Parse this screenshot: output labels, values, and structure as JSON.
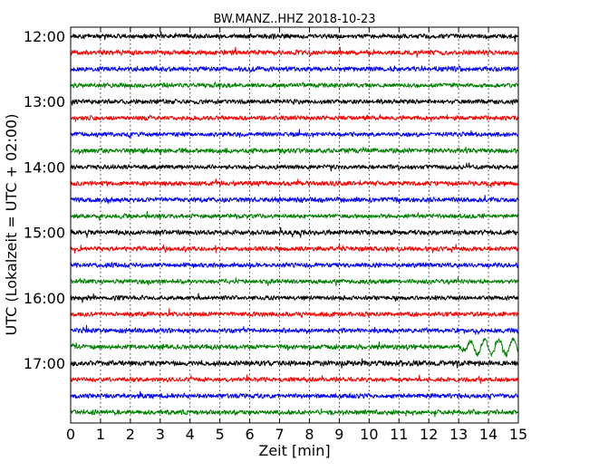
{
  "chart_data": {
    "type": "line",
    "title": "BW.MANZ..HHZ 2018-10-23",
    "xlabel": "Zeit  [min]",
    "ylabel": "UTC (Lokalzeit = UTC + 02:00)",
    "xlim": [
      0,
      15
    ],
    "x_ticks": [
      "0",
      "1",
      "2",
      "3",
      "4",
      "5",
      "6",
      "7",
      "8",
      "9",
      "10",
      "11",
      "12",
      "13",
      "14",
      "15"
    ],
    "y_ticks": [
      "12:00",
      "13:00",
      "14:00",
      "15:00",
      "16:00",
      "17:00"
    ],
    "trace_interval_min": 15,
    "first_trace": "12:00",
    "trace_count": 24,
    "grid": "vertical dotted",
    "colors": [
      "#000000",
      "#ff0000",
      "#0000ff",
      "#008000"
    ],
    "traces": [
      {
        "start": "12:00",
        "amp": 2.5,
        "event": null
      },
      {
        "start": "12:15",
        "amp": 2.6,
        "event": null
      },
      {
        "start": "12:30",
        "amp": 2.6,
        "event": null
      },
      {
        "start": "12:45",
        "amp": 2.4,
        "event": null
      },
      {
        "start": "13:00",
        "amp": 2.5,
        "event": null
      },
      {
        "start": "13:15",
        "amp": 2.4,
        "event": null
      },
      {
        "start": "13:30",
        "amp": 2.3,
        "event": null
      },
      {
        "start": "13:45",
        "amp": 2.5,
        "event": null
      },
      {
        "start": "14:00",
        "amp": 2.4,
        "event": null
      },
      {
        "start": "14:15",
        "amp": 2.6,
        "event": null
      },
      {
        "start": "14:30",
        "amp": 2.7,
        "event": null
      },
      {
        "start": "14:45",
        "amp": 2.4,
        "event": null
      },
      {
        "start": "15:00",
        "amp": 2.6,
        "event": null
      },
      {
        "start": "15:15",
        "amp": 2.5,
        "event": null
      },
      {
        "start": "15:30",
        "amp": 2.5,
        "event": null
      },
      {
        "start": "15:45",
        "amp": 2.4,
        "event": null
      },
      {
        "start": "16:00",
        "amp": 2.3,
        "event": null
      },
      {
        "start": "16:15",
        "amp": 2.5,
        "event": null
      },
      {
        "start": "16:30",
        "amp": 2.4,
        "event": null
      },
      {
        "start": "16:45",
        "amp": 2.6,
        "event": {
          "start_min": 12.8,
          "amp": 8
        }
      },
      {
        "start": "17:00",
        "amp": 2.8,
        "event": null
      },
      {
        "start": "17:15",
        "amp": 2.4,
        "event": null
      },
      {
        "start": "17:30",
        "amp": 2.5,
        "event": null
      },
      {
        "start": "17:45",
        "amp": 2.5,
        "event": null
      }
    ]
  }
}
